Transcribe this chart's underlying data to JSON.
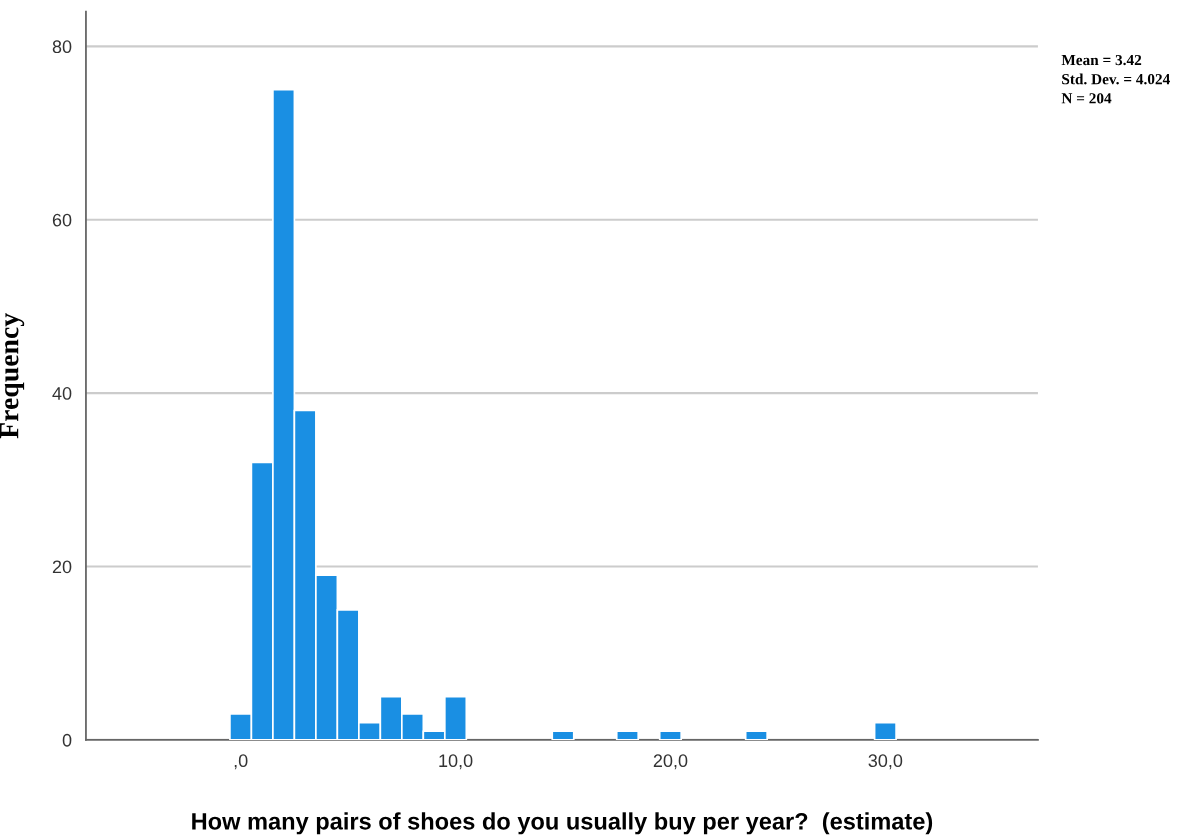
{
  "chart_data": {
    "type": "histogram",
    "xlabel": "How many pairs of shoes do you usually buy per year?  (estimate)",
    "ylabel": "Frequency",
    "bins": [
      -0.5,
      0.5,
      1.5,
      2.5,
      3.5,
      4.5,
      5.5,
      6.5,
      7.5,
      8.5,
      9.5,
      10.5,
      11.5,
      12.5,
      13.5,
      14.5,
      15.5,
      16.5,
      17.5,
      18.5,
      19.5,
      20.5,
      21.5,
      22.5,
      23.5,
      24.5,
      25.5,
      26.5,
      27.5,
      28.5,
      29.5,
      30.5
    ],
    "values": [
      3,
      32,
      75,
      38,
      19,
      15,
      2,
      5,
      3,
      1,
      5,
      0,
      0,
      0,
      0,
      1,
      0,
      0,
      1,
      0,
      1,
      0,
      0,
      0,
      1,
      0,
      0,
      0,
      0,
      0,
      2
    ],
    "color": "#1a8fe3",
    "xlim": [
      -7.2,
      37.1
    ],
    "xticks": [
      {
        "value": 0,
        "label": ",0"
      },
      {
        "value": 10,
        "label": "10,0"
      },
      {
        "value": 20,
        "label": "20,0"
      },
      {
        "value": 30,
        "label": "30,0"
      }
    ],
    "ylim": [
      0,
      84
    ],
    "yticks": [
      0,
      20,
      40,
      60,
      80
    ],
    "grid": "y",
    "annotations": [
      "Mean = 3.42\nStd. Dev. = 4.024\nN = 204"
    ]
  }
}
